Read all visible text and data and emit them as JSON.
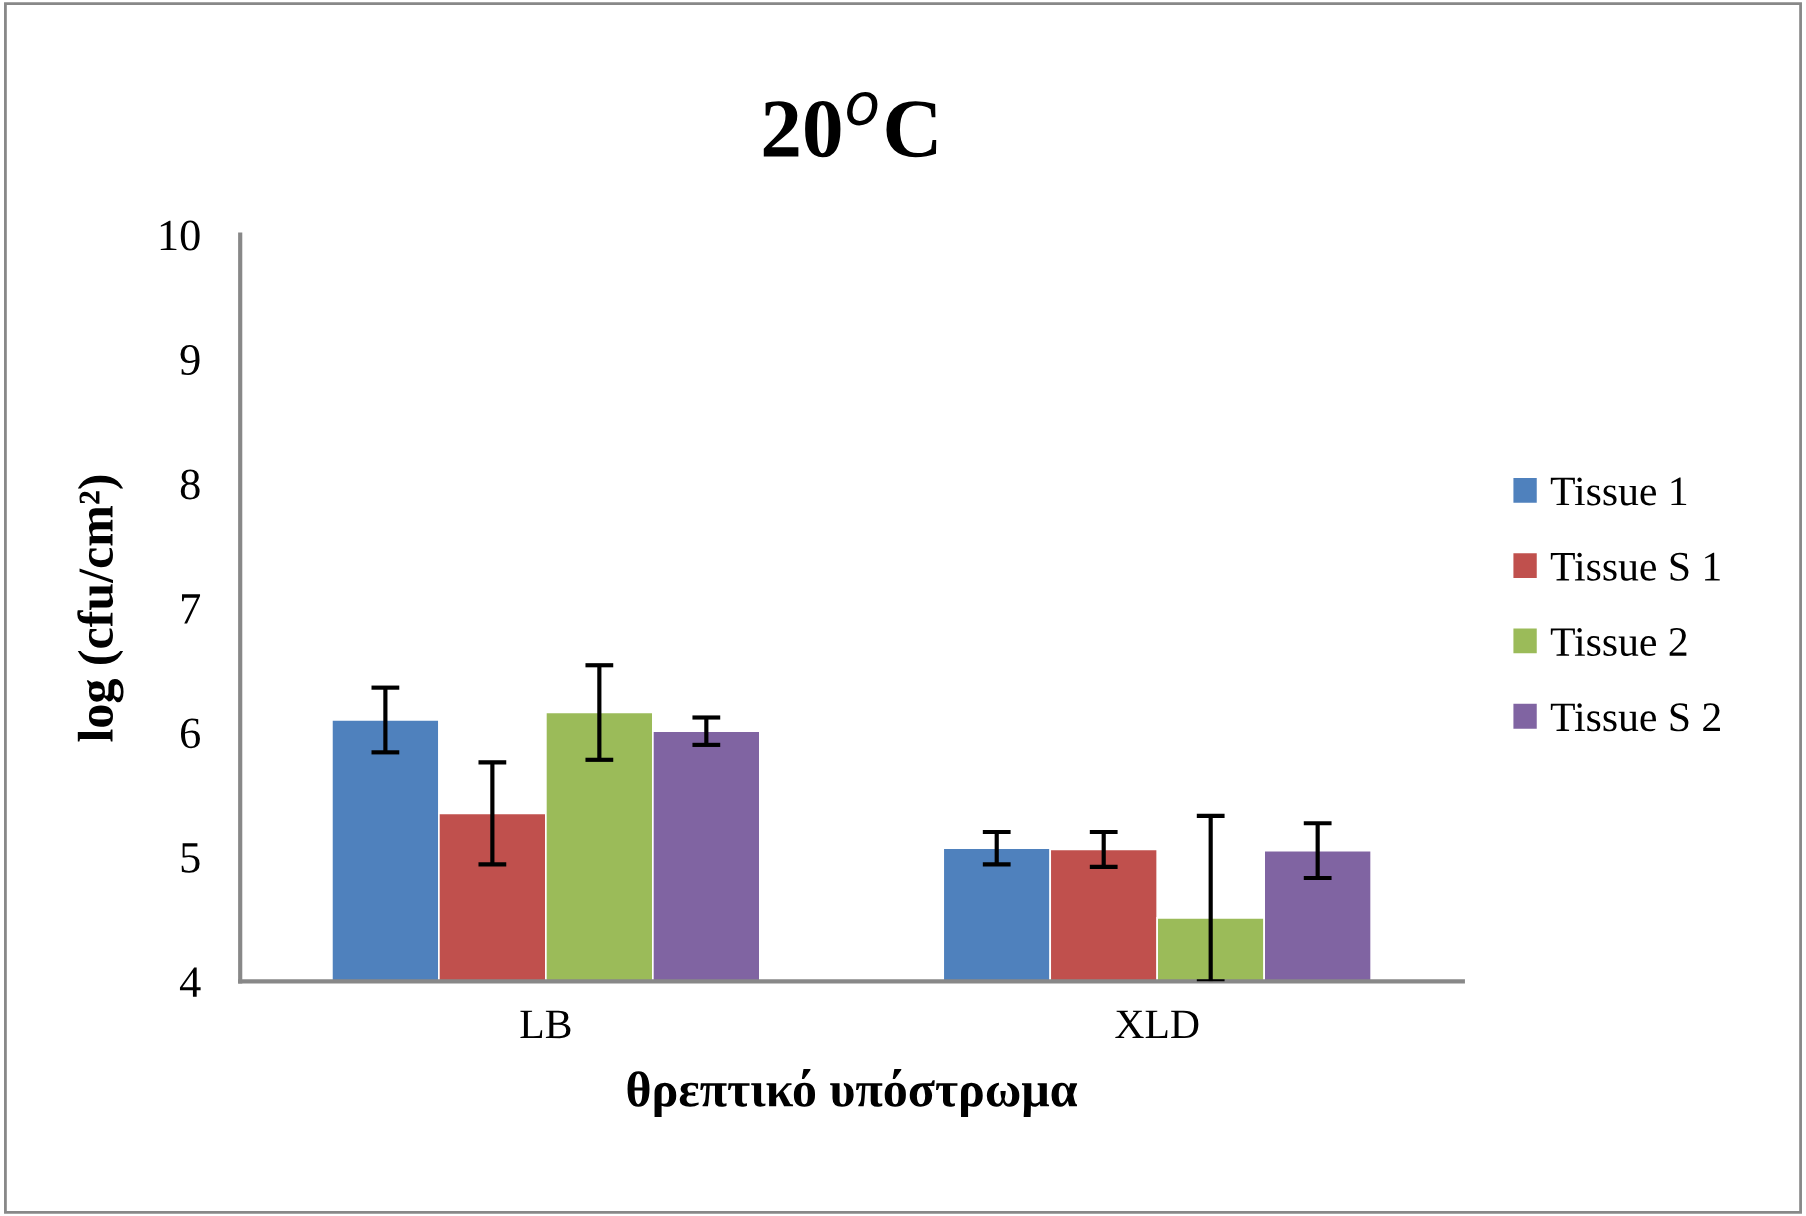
{
  "chart_data": {
    "type": "bar",
    "title": "20$^{o}$C",
    "xlabel": "θρεπτικό υπόστρωμα",
    "ylabel": "log (cfu/cm²)",
    "categories": [
      "LB",
      "XLD"
    ],
    "series": [
      {
        "name": "Tissue 1",
        "color": "#4f81bd",
        "values": [
          6.1,
          5.07
        ],
        "errors": [
          0.26,
          0.13
        ]
      },
      {
        "name": "Tissue S 1",
        "color": "#c0504d",
        "values": [
          5.35,
          5.06
        ],
        "errors": [
          0.41,
          0.14
        ]
      },
      {
        "name": "Tissue 2",
        "color": "#9bbb59",
        "values": [
          6.16,
          4.51
        ],
        "errors": [
          0.38,
          [
            4.0,
            5.33
          ]
        ]
      },
      {
        "name": "Tissue S 2",
        "color": "#8064a2",
        "values": [
          6.01,
          5.05
        ],
        "errors": [
          0.11,
          0.22
        ]
      }
    ],
    "ylim": [
      4,
      10
    ],
    "yticks": [
      4,
      5,
      6,
      7,
      8,
      9,
      10
    ],
    "grid": false,
    "legend": "right"
  }
}
